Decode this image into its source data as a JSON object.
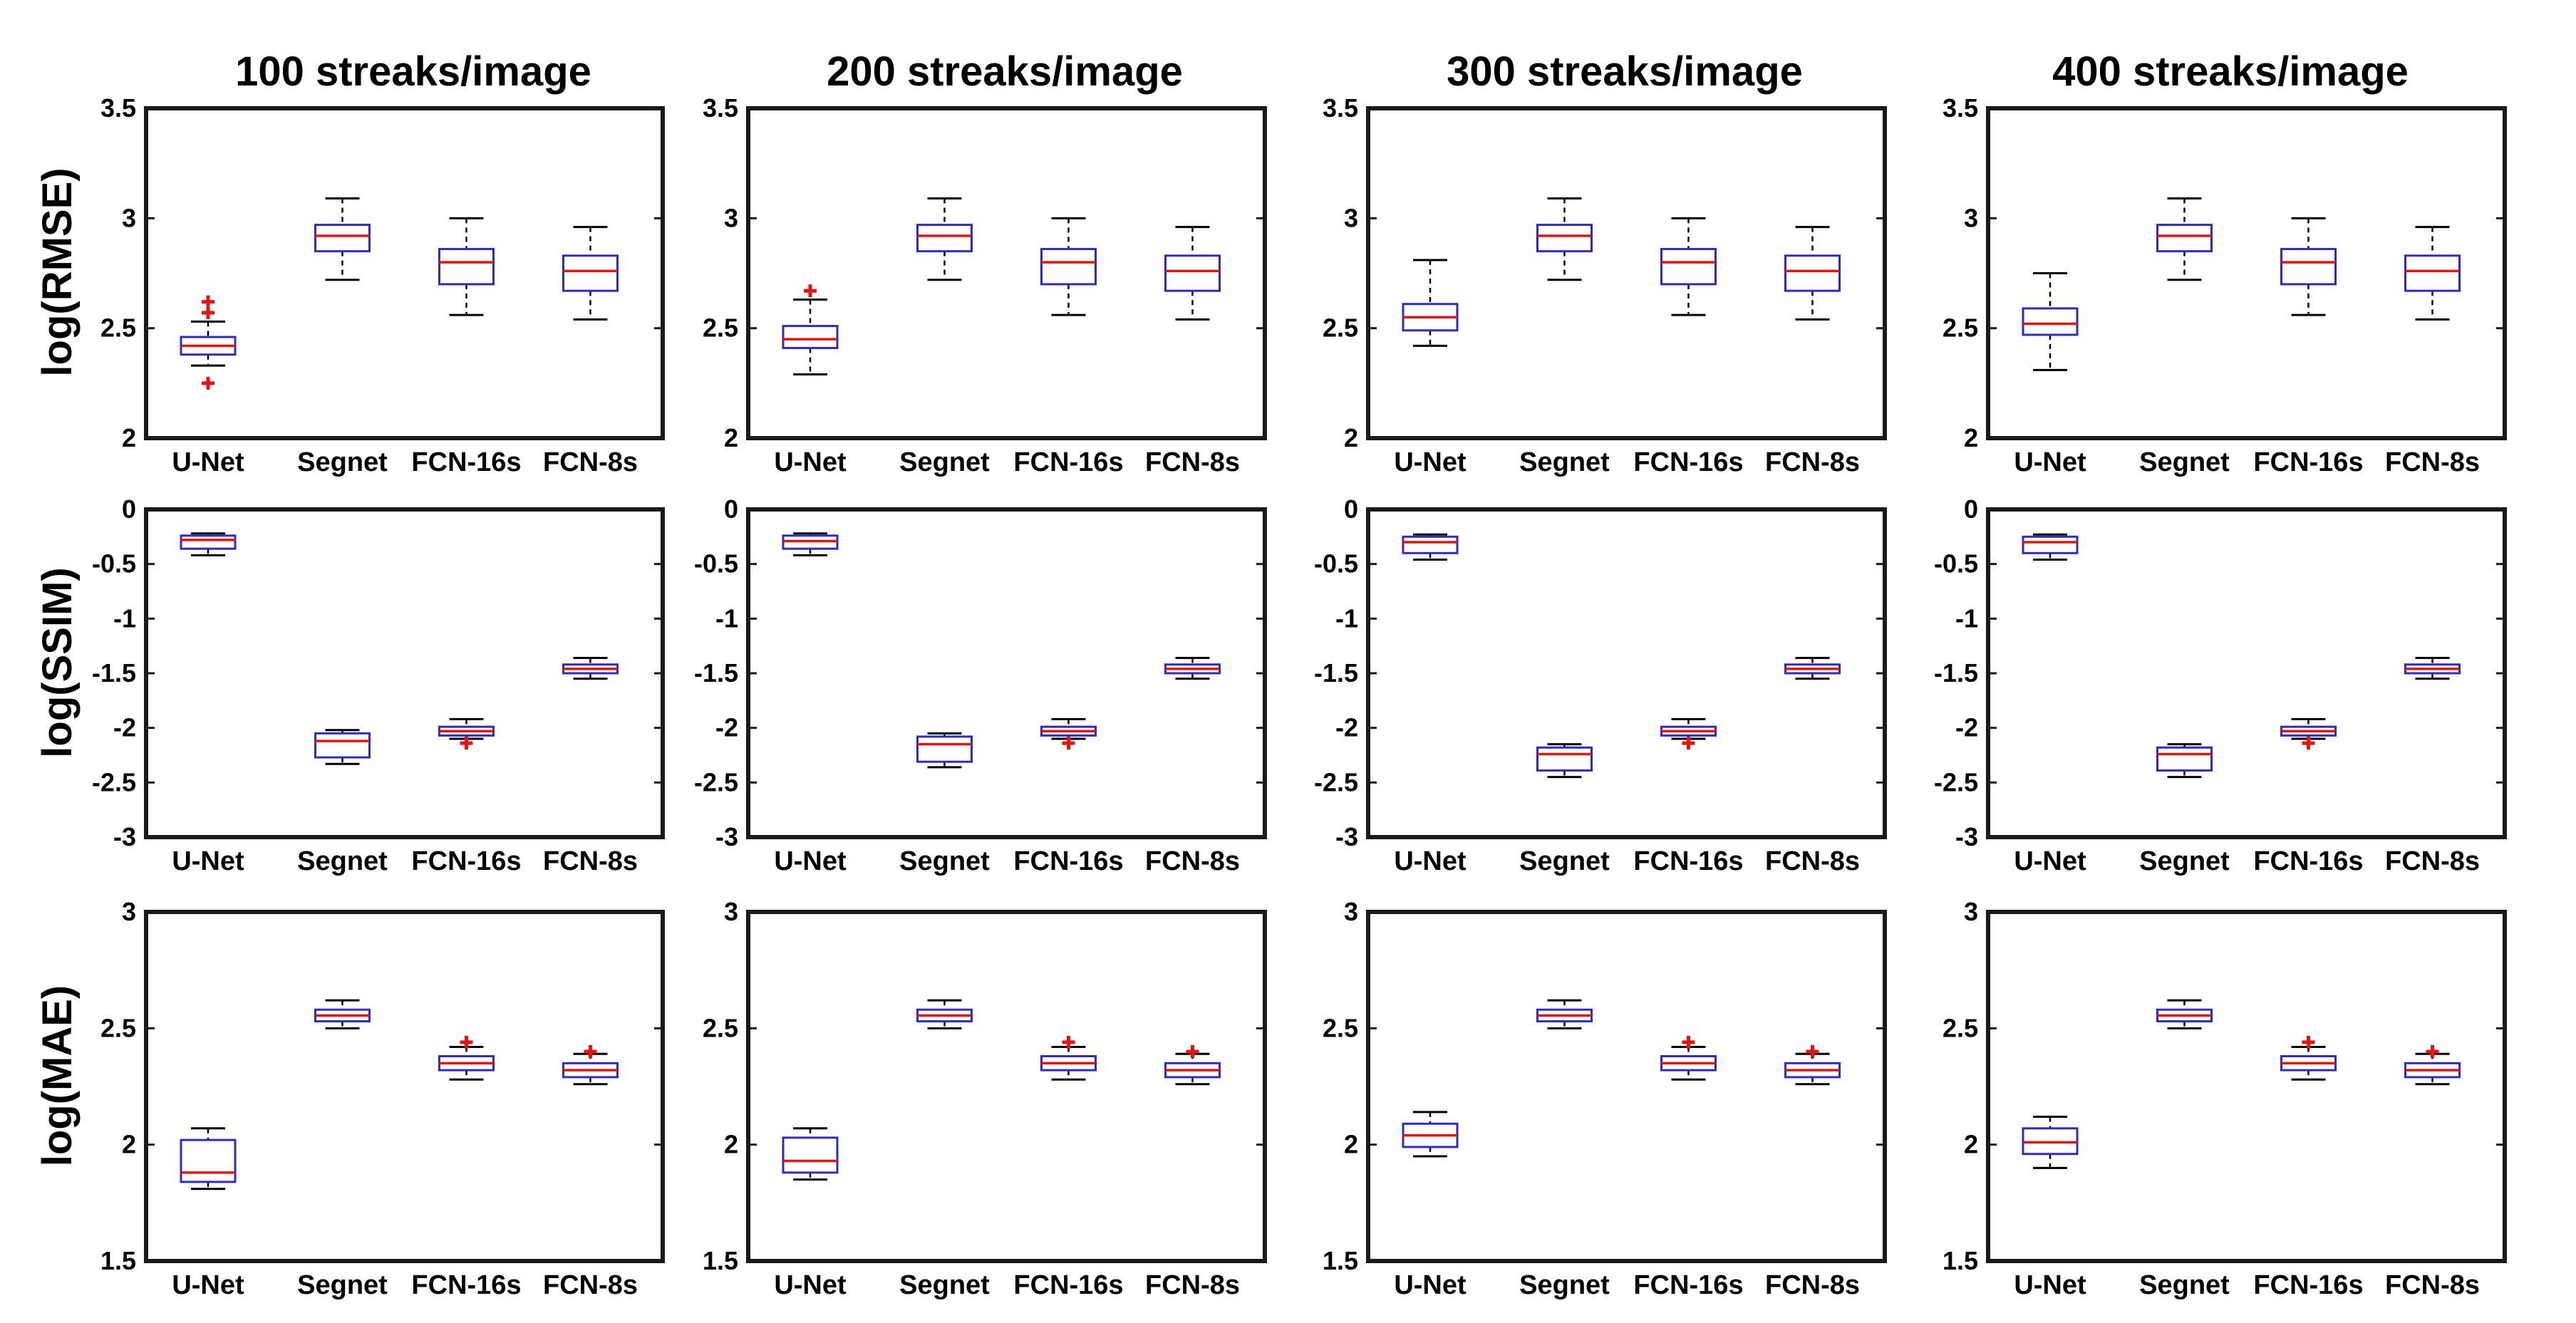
{
  "colors": {
    "box": "#2b2bd0",
    "median": "#e8130f",
    "outlier": "#e8130f",
    "frame": "#1a1a1a",
    "whisker": "#000000"
  },
  "columns": [
    "100 streaks/image",
    "200 streaks/image",
    "300 streaks/image",
    "400 streaks/image"
  ],
  "rows": [
    {
      "ylabel": "log(RMSE)",
      "ylim": [
        2,
        3.5
      ],
      "ticks": [
        "2",
        "2.5",
        "3",
        "3.5"
      ]
    },
    {
      "ylabel": "log(SSIM)",
      "ylim": [
        -3,
        0
      ],
      "ticks": [
        "-3",
        "-2.5",
        "-2",
        "-1.5",
        "-1",
        "-0.5",
        "0"
      ]
    },
    {
      "ylabel": "log(MAE)",
      "ylim": [
        1.5,
        3
      ],
      "ticks": [
        "1.5",
        "2",
        "2.5",
        "3"
      ]
    }
  ],
  "chart_data": [
    {
      "type": "boxplot",
      "title": "100 streaks/image",
      "ylabel": "log(RMSE)",
      "ylim": [
        2,
        3.5
      ],
      "categories": [
        "U-Net",
        "Segnet",
        "FCN-16s",
        "FCN-8s"
      ],
      "boxes": [
        {
          "low": 2.33,
          "q1": 2.38,
          "median": 2.42,
          "q3": 2.46,
          "high": 2.53,
          "outliers": [
            2.25,
            2.57,
            2.62
          ]
        },
        {
          "low": 2.72,
          "q1": 2.85,
          "median": 2.92,
          "q3": 2.97,
          "high": 3.09,
          "outliers": []
        },
        {
          "low": 2.56,
          "q1": 2.7,
          "median": 2.8,
          "q3": 2.86,
          "high": 3.0,
          "outliers": []
        },
        {
          "low": 2.54,
          "q1": 2.67,
          "median": 2.76,
          "q3": 2.83,
          "high": 2.96,
          "outliers": []
        }
      ]
    },
    {
      "type": "boxplot",
      "title": "200 streaks/image",
      "ylabel": "log(RMSE)",
      "ylim": [
        2,
        3.5
      ],
      "categories": [
        "U-Net",
        "Segnet",
        "FCN-16s",
        "FCN-8s"
      ],
      "boxes": [
        {
          "low": 2.29,
          "q1": 2.41,
          "median": 2.45,
          "q3": 2.51,
          "high": 2.63,
          "outliers": [
            2.67
          ]
        },
        {
          "low": 2.72,
          "q1": 2.85,
          "median": 2.92,
          "q3": 2.97,
          "high": 3.09,
          "outliers": []
        },
        {
          "low": 2.56,
          "q1": 2.7,
          "median": 2.8,
          "q3": 2.86,
          "high": 3.0,
          "outliers": []
        },
        {
          "low": 2.54,
          "q1": 2.67,
          "median": 2.76,
          "q3": 2.83,
          "high": 2.96,
          "outliers": []
        }
      ]
    },
    {
      "type": "boxplot",
      "title": "300 streaks/image",
      "ylabel": "log(RMSE)",
      "ylim": [
        2,
        3.5
      ],
      "categories": [
        "U-Net",
        "Segnet",
        "FCN-16s",
        "FCN-8s"
      ],
      "boxes": [
        {
          "low": 2.42,
          "q1": 2.49,
          "median": 2.55,
          "q3": 2.61,
          "high": 2.81,
          "outliers": []
        },
        {
          "low": 2.72,
          "q1": 2.85,
          "median": 2.92,
          "q3": 2.97,
          "high": 3.09,
          "outliers": []
        },
        {
          "low": 2.56,
          "q1": 2.7,
          "median": 2.8,
          "q3": 2.86,
          "high": 3.0,
          "outliers": []
        },
        {
          "low": 2.54,
          "q1": 2.67,
          "median": 2.76,
          "q3": 2.83,
          "high": 2.96,
          "outliers": []
        }
      ]
    },
    {
      "type": "boxplot",
      "title": "400 streaks/image",
      "ylabel": "log(RMSE)",
      "ylim": [
        2,
        3.5
      ],
      "categories": [
        "U-Net",
        "Segnet",
        "FCN-16s",
        "FCN-8s"
      ],
      "boxes": [
        {
          "low": 2.31,
          "q1": 2.47,
          "median": 2.52,
          "q3": 2.59,
          "high": 2.75,
          "outliers": []
        },
        {
          "low": 2.72,
          "q1": 2.85,
          "median": 2.92,
          "q3": 2.97,
          "high": 3.09,
          "outliers": []
        },
        {
          "low": 2.56,
          "q1": 2.7,
          "median": 2.8,
          "q3": 2.86,
          "high": 3.0,
          "outliers": []
        },
        {
          "low": 2.54,
          "q1": 2.67,
          "median": 2.76,
          "q3": 2.83,
          "high": 2.96,
          "outliers": []
        }
      ]
    },
    {
      "type": "boxplot",
      "title": "100 streaks/image",
      "ylabel": "log(SSIM)",
      "ylim": [
        -3,
        0
      ],
      "categories": [
        "U-Net",
        "Segnet",
        "FCN-16s",
        "FCN-8s"
      ],
      "boxes": [
        {
          "low": -0.42,
          "q1": -0.36,
          "median": -0.28,
          "q3": -0.24,
          "high": -0.22,
          "outliers": []
        },
        {
          "low": -2.33,
          "q1": -2.27,
          "median": -2.12,
          "q3": -2.05,
          "high": -2.02,
          "outliers": []
        },
        {
          "low": -2.1,
          "q1": -2.07,
          "median": -2.03,
          "q3": -1.99,
          "high": -1.92,
          "outliers": [
            -2.14
          ]
        },
        {
          "low": -1.55,
          "q1": -1.5,
          "median": -1.46,
          "q3": -1.42,
          "high": -1.36,
          "outliers": []
        }
      ]
    },
    {
      "type": "boxplot",
      "title": "200 streaks/image",
      "ylabel": "log(SSIM)",
      "ylim": [
        -3,
        0
      ],
      "categories": [
        "U-Net",
        "Segnet",
        "FCN-16s",
        "FCN-8s"
      ],
      "boxes": [
        {
          "low": -0.42,
          "q1": -0.36,
          "median": -0.29,
          "q3": -0.24,
          "high": -0.22,
          "outliers": []
        },
        {
          "low": -2.36,
          "q1": -2.31,
          "median": -2.15,
          "q3": -2.08,
          "high": -2.05,
          "outliers": []
        },
        {
          "low": -2.1,
          "q1": -2.07,
          "median": -2.03,
          "q3": -1.99,
          "high": -1.92,
          "outliers": [
            -2.14
          ]
        },
        {
          "low": -1.55,
          "q1": -1.5,
          "median": -1.46,
          "q3": -1.42,
          "high": -1.36,
          "outliers": []
        }
      ]
    },
    {
      "type": "boxplot",
      "title": "300 streaks/image",
      "ylabel": "log(SSIM)",
      "ylim": [
        -3,
        0
      ],
      "categories": [
        "U-Net",
        "Segnet",
        "FCN-16s",
        "FCN-8s"
      ],
      "boxes": [
        {
          "low": -0.46,
          "q1": -0.4,
          "median": -0.3,
          "q3": -0.25,
          "high": -0.23,
          "outliers": []
        },
        {
          "low": -2.45,
          "q1": -2.39,
          "median": -2.24,
          "q3": -2.18,
          "high": -2.15,
          "outliers": []
        },
        {
          "low": -2.1,
          "q1": -2.07,
          "median": -2.03,
          "q3": -1.99,
          "high": -1.92,
          "outliers": [
            -2.14
          ]
        },
        {
          "low": -1.55,
          "q1": -1.5,
          "median": -1.46,
          "q3": -1.42,
          "high": -1.36,
          "outliers": []
        }
      ]
    },
    {
      "type": "boxplot",
      "title": "400 streaks/image",
      "ylabel": "log(SSIM)",
      "ylim": [
        -3,
        0
      ],
      "categories": [
        "U-Net",
        "Segnet",
        "FCN-16s",
        "FCN-8s"
      ],
      "boxes": [
        {
          "low": -0.46,
          "q1": -0.4,
          "median": -0.3,
          "q3": -0.25,
          "high": -0.23,
          "outliers": []
        },
        {
          "low": -2.45,
          "q1": -2.39,
          "median": -2.24,
          "q3": -2.18,
          "high": -2.15,
          "outliers": []
        },
        {
          "low": -2.1,
          "q1": -2.07,
          "median": -2.03,
          "q3": -1.99,
          "high": -1.92,
          "outliers": [
            -2.14
          ]
        },
        {
          "low": -1.55,
          "q1": -1.5,
          "median": -1.46,
          "q3": -1.42,
          "high": -1.36,
          "outliers": []
        }
      ]
    },
    {
      "type": "boxplot",
      "title": "100 streaks/image",
      "ylabel": "log(MAE)",
      "ylim": [
        1.5,
        3
      ],
      "categories": [
        "U-Net",
        "Segnet",
        "FCN-16s",
        "FCN-8s"
      ],
      "boxes": [
        {
          "low": 1.81,
          "q1": 1.84,
          "median": 1.88,
          "q3": 2.02,
          "high": 2.07,
          "outliers": []
        },
        {
          "low": 2.5,
          "q1": 2.53,
          "median": 2.555,
          "q3": 2.58,
          "high": 2.62,
          "outliers": []
        },
        {
          "low": 2.28,
          "q1": 2.32,
          "median": 2.35,
          "q3": 2.38,
          "high": 2.42,
          "outliers": [
            2.44
          ]
        },
        {
          "low": 2.26,
          "q1": 2.29,
          "median": 2.32,
          "q3": 2.35,
          "high": 2.39,
          "outliers": [
            2.4
          ]
        }
      ]
    },
    {
      "type": "boxplot",
      "title": "200 streaks/image",
      "ylabel": "log(MAE)",
      "ylim": [
        1.5,
        3
      ],
      "categories": [
        "U-Net",
        "Segnet",
        "FCN-16s",
        "FCN-8s"
      ],
      "boxes": [
        {
          "low": 1.85,
          "q1": 1.88,
          "median": 1.93,
          "q3": 2.03,
          "high": 2.07,
          "outliers": []
        },
        {
          "low": 2.5,
          "q1": 2.53,
          "median": 2.555,
          "q3": 2.58,
          "high": 2.62,
          "outliers": []
        },
        {
          "low": 2.28,
          "q1": 2.32,
          "median": 2.35,
          "q3": 2.38,
          "high": 2.42,
          "outliers": [
            2.44
          ]
        },
        {
          "low": 2.26,
          "q1": 2.29,
          "median": 2.32,
          "q3": 2.35,
          "high": 2.39,
          "outliers": [
            2.4
          ]
        }
      ]
    },
    {
      "type": "boxplot",
      "title": "300 streaks/image",
      "ylabel": "log(MAE)",
      "ylim": [
        1.5,
        3
      ],
      "categories": [
        "U-Net",
        "Segnet",
        "FCN-16s",
        "FCN-8s"
      ],
      "boxes": [
        {
          "low": 1.95,
          "q1": 1.99,
          "median": 2.04,
          "q3": 2.09,
          "high": 2.14,
          "outliers": []
        },
        {
          "low": 2.5,
          "q1": 2.53,
          "median": 2.555,
          "q3": 2.58,
          "high": 2.62,
          "outliers": []
        },
        {
          "low": 2.28,
          "q1": 2.32,
          "median": 2.35,
          "q3": 2.38,
          "high": 2.42,
          "outliers": [
            2.44
          ]
        },
        {
          "low": 2.26,
          "q1": 2.29,
          "median": 2.32,
          "q3": 2.35,
          "high": 2.39,
          "outliers": [
            2.4
          ]
        }
      ]
    },
    {
      "type": "boxplot",
      "title": "400 streaks/image",
      "ylabel": "log(MAE)",
      "ylim": [
        1.5,
        3
      ],
      "categories": [
        "U-Net",
        "Segnet",
        "FCN-16s",
        "FCN-8s"
      ],
      "boxes": [
        {
          "low": 1.9,
          "q1": 1.96,
          "median": 2.01,
          "q3": 2.07,
          "high": 2.12,
          "outliers": []
        },
        {
          "low": 2.5,
          "q1": 2.53,
          "median": 2.555,
          "q3": 2.58,
          "high": 2.62,
          "outliers": []
        },
        {
          "low": 2.28,
          "q1": 2.32,
          "median": 2.35,
          "q3": 2.38,
          "high": 2.42,
          "outliers": [
            2.44
          ]
        },
        {
          "low": 2.26,
          "q1": 2.29,
          "median": 2.32,
          "q3": 2.35,
          "high": 2.39,
          "outliers": [
            2.4
          ]
        }
      ]
    }
  ]
}
